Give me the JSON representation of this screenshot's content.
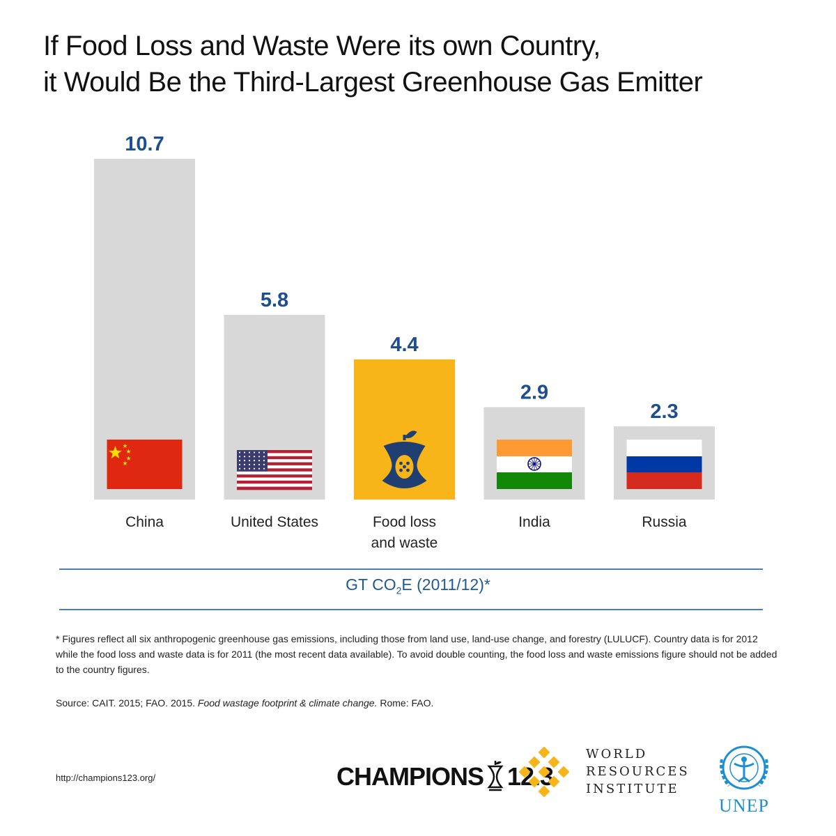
{
  "title": {
    "line1": "If Food Loss and Waste Were its own Country,",
    "line2": "it Would Be the Third-Largest Greenhouse Gas Emitter"
  },
  "chart_data": {
    "type": "bar",
    "categories": [
      "China",
      "United States",
      "Food loss and waste",
      "India",
      "Russia"
    ],
    "category_lines": [
      [
        "China"
      ],
      [
        "United States"
      ],
      [
        "Food loss",
        "and waste"
      ],
      [
        "India"
      ],
      [
        "Russia"
      ]
    ],
    "values": [
      10.7,
      5.8,
      4.4,
      2.9,
      2.3
    ],
    "value_labels": [
      "10.7",
      "5.8",
      "4.4",
      "2.9",
      "2.3"
    ],
    "icons": [
      "china-flag-icon",
      "us-flag-icon",
      "apple-core-icon",
      "india-flag-icon",
      "russia-flag-icon"
    ],
    "unit_label": {
      "prefix": "GT CO",
      "sub": "2",
      "suffix": "E (2011/12)*"
    },
    "colors": {
      "bar": "#d8d8d8",
      "highlight": "#f7b519",
      "value_text": "#1f4e8c"
    },
    "highlight_index": 2,
    "ylim": [
      0,
      10.7
    ],
    "grid": false
  },
  "footnote": "* Figures reflect all six anthropogenic greenhouse gas emissions, including those from land use, land-use change, and forestry (LULUCF).  Country data is for 2012 while the food loss and waste data is for 2011 (the most recent data available). To avoid double counting, the food loss and waste emissions figure should not be added to the country figures.",
  "source": {
    "prefix": "Source: CAIT. 2015; FAO. 2015. ",
    "title": "Food wastage footprint & climate change.",
    "suffix": " Rome: FAO."
  },
  "url": "http://champions123.org/",
  "logos": {
    "champions_left": "CHAMPIONS",
    "champions_right": "12.3",
    "wri": [
      "WORLD",
      "RESOURCES",
      "INSTITUTE"
    ],
    "unep": "UNEP"
  }
}
